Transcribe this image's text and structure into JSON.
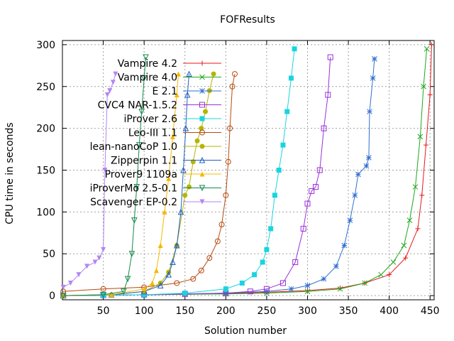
{
  "chart_data": {
    "type": "line",
    "title": "FOFResults",
    "xlabel": "Solution number",
    "ylabel": "CPU time in seconds",
    "xlim": [
      0,
      455
    ],
    "ylim": [
      -5,
      305
    ],
    "xticks": [
      50,
      100,
      150,
      200,
      250,
      300,
      350,
      400,
      450
    ],
    "yticks": [
      0,
      50,
      100,
      150,
      200,
      250,
      300
    ],
    "grid": true,
    "legend_position": "top-left",
    "series": [
      {
        "name": "Vampire 4.2",
        "color": "#e41a1c",
        "marker": "plus",
        "x": [
          1,
          50,
          100,
          150,
          200,
          250,
          300,
          340,
          370,
          400,
          420,
          435,
          440,
          445,
          450,
          452
        ],
        "y": [
          0,
          0.5,
          1,
          1.5,
          2.5,
          4,
          6,
          9,
          15,
          25,
          45,
          80,
          120,
          180,
          240,
          300
        ]
      },
      {
        "name": "Vampire 4.0",
        "color": "#1ea81e",
        "marker": "x",
        "x": [
          1,
          50,
          100,
          150,
          200,
          250,
          300,
          340,
          370,
          390,
          405,
          418,
          425,
          432,
          438,
          442,
          446
        ],
        "y": [
          0,
          0.5,
          1,
          1.5,
          2,
          3,
          5,
          8,
          15,
          25,
          40,
          60,
          90,
          130,
          190,
          250,
          295
        ]
      },
      {
        "name": "E 2.1",
        "color": "#2f6fd0",
        "marker": "star",
        "x": [
          1,
          50,
          100,
          150,
          200,
          250,
          280,
          300,
          320,
          335,
          345,
          352,
          358,
          362,
          372,
          375,
          376,
          380,
          382
        ],
        "y": [
          0,
          0.5,
          1,
          2,
          3,
          5,
          8,
          12,
          20,
          35,
          60,
          90,
          120,
          145,
          155,
          165,
          220,
          260,
          283
        ]
      },
      {
        "name": "CVC4 NAR-1.5.2",
        "color": "#9b30d9",
        "marker": "square",
        "x": [
          1,
          50,
          100,
          150,
          200,
          230,
          250,
          270,
          285,
          295,
          300,
          305,
          310,
          315,
          320,
          325,
          328
        ],
        "y": [
          0,
          0.5,
          1,
          2,
          3,
          5,
          8,
          15,
          40,
          80,
          110,
          125,
          130,
          150,
          200,
          240,
          285
        ]
      },
      {
        "name": "iProver 2.6",
        "color": "#19d4e0",
        "marker": "filled-square",
        "x": [
          1,
          50,
          100,
          150,
          200,
          220,
          235,
          245,
          250,
          255,
          260,
          265,
          270,
          275,
          280,
          284
        ],
        "y": [
          0,
          0.5,
          1,
          3,
          8,
          15,
          25,
          40,
          55,
          80,
          120,
          150,
          180,
          220,
          260,
          295
        ]
      },
      {
        "name": "Leo-III 1.1",
        "color": "#b84a0e",
        "marker": "circle",
        "x": [
          1,
          50,
          100,
          140,
          160,
          170,
          180,
          190,
          195,
          200,
          203,
          205,
          208,
          211
        ],
        "y": [
          5,
          8,
          10,
          15,
          20,
          30,
          45,
          65,
          85,
          120,
          160,
          200,
          250,
          265
        ]
      },
      {
        "name": "lean-nanoCoP 1.0",
        "color": "#b5b400",
        "marker": "filled-circle",
        "x": [
          1,
          60,
          100,
          120,
          130,
          140,
          150,
          155,
          160,
          165,
          170,
          175,
          180,
          185
        ],
        "y": [
          0,
          1,
          5,
          15,
          28,
          60,
          120,
          130,
          160,
          185,
          200,
          220,
          245,
          265
        ]
      },
      {
        "name": "Zipperpin 1.1",
        "color": "#2060c0",
        "marker": "triangle",
        "x": [
          1,
          60,
          100,
          120,
          130,
          135,
          140,
          145,
          148,
          151,
          153,
          155
        ],
        "y": [
          0,
          1,
          5,
          12,
          25,
          40,
          60,
          100,
          150,
          200,
          240,
          265
        ]
      },
      {
        "name": "Prover9 1109a",
        "color": "#f5b800",
        "marker": "filled-triangle",
        "x": [
          1,
          60,
          100,
          110,
          115,
          120,
          125,
          130,
          135,
          140,
          142
        ],
        "y": [
          0,
          1,
          8,
          15,
          30,
          60,
          100,
          140,
          190,
          240,
          265
        ]
      },
      {
        "name": "iProverMo 2.5-0.1",
        "color": "#138a4a",
        "marker": "triangle-down",
        "x": [
          1,
          50,
          75,
          80,
          85,
          88,
          91,
          94,
          97,
          100,
          102
        ],
        "y": [
          0,
          1,
          5,
          20,
          50,
          90,
          130,
          180,
          220,
          260,
          285
        ]
      },
      {
        "name": "Scavenger EP-0.2",
        "color": "#b285f5",
        "marker": "filled-triangle-down",
        "x": [
          1,
          10,
          20,
          30,
          40,
          45,
          50,
          52,
          55,
          58,
          62,
          65
        ],
        "y": [
          10,
          15,
          25,
          35,
          40,
          45,
          55,
          150,
          240,
          245,
          255,
          265
        ]
      }
    ]
  }
}
